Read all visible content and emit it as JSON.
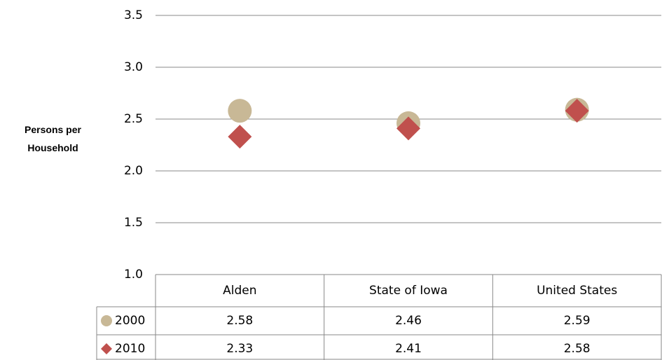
{
  "chart_data": {
    "type": "dot",
    "ylabel": "Persons per Household",
    "categories": [
      "Alden",
      "State of Iowa",
      "United States"
    ],
    "series": [
      {
        "name": "2000",
        "color": "#c8b896",
        "marker": "circle",
        "values": [
          2.58,
          2.46,
          2.59
        ]
      },
      {
        "name": "2010",
        "color": "#c0504d",
        "marker": "diamond",
        "values": [
          2.33,
          2.41,
          2.58
        ]
      }
    ],
    "ylim": [
      1.0,
      3.5
    ],
    "yticks": [
      {
        "value": 1,
        "label": "1.0"
      },
      1.5,
      {
        "value": 2,
        "label": "2.0"
      },
      2.5,
      {
        "value": 3,
        "label": "3.0"
      },
      3.5
    ],
    "grid": true,
    "data_table": true
  }
}
